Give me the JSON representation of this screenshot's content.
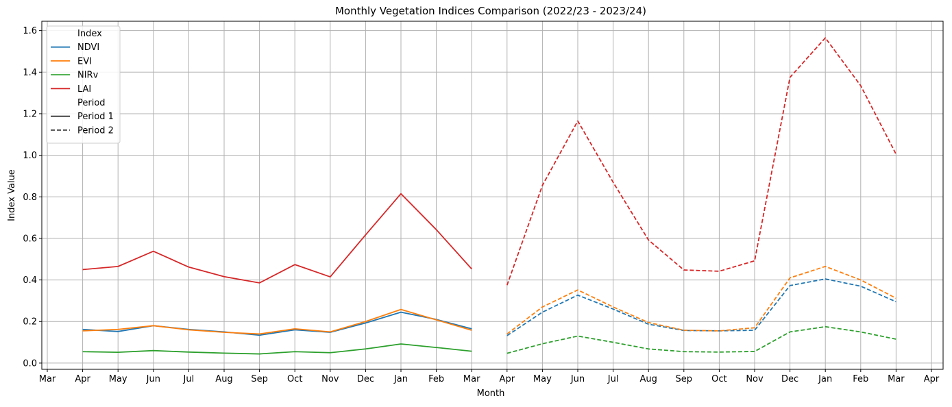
{
  "chart_data": {
    "type": "line",
    "title": "Monthly Vegetation Indices Comparison (2022/23 - 2023/24)",
    "xlabel": "Month",
    "ylabel": "Index Value",
    "ylim": [
      -0.03,
      1.645
    ],
    "yticks": [
      "0.0",
      "0.2",
      "0.4",
      "0.6",
      "0.8",
      "1.0",
      "1.2",
      "1.4",
      "1.6"
    ],
    "x_tick_labels": [
      "Mar",
      "Apr",
      "May",
      "Jun",
      "Jul",
      "Aug",
      "Sep",
      "Oct",
      "Nov",
      "Dec",
      "Jan",
      "Feb",
      "Mar",
      "Apr",
      "May",
      "Jun",
      "Jul",
      "Aug",
      "Sep",
      "Oct",
      "Nov",
      "Dec",
      "Jan",
      "Feb",
      "Mar",
      "Apr"
    ],
    "grid": true,
    "legend": {
      "placement": "top-left",
      "index_title": "Index",
      "period_title": "Period",
      "periods": [
        {
          "name": "Period 1",
          "dash": "solid"
        },
        {
          "name": "Period 2",
          "dash": "dashed"
        }
      ]
    },
    "period1_months": [
      "Apr",
      "May",
      "Jun",
      "Jul",
      "Aug",
      "Sep",
      "Oct",
      "Nov",
      "Dec",
      "Jan",
      "Feb",
      "Mar"
    ],
    "period2_months": [
      "Apr",
      "May",
      "Jun",
      "Jul",
      "Aug",
      "Sep",
      "Oct",
      "Nov",
      "Dec",
      "Jan",
      "Feb",
      "Mar"
    ],
    "series": [
      {
        "name": "NDVI",
        "color": "#1f77b4",
        "period1": [
          0.162,
          0.152,
          0.18,
          0.162,
          0.15,
          0.134,
          0.16,
          0.148,
          0.193,
          0.245,
          0.21,
          0.165
        ],
        "period2": [
          0.132,
          0.245,
          0.327,
          0.26,
          0.187,
          0.157,
          0.155,
          0.158,
          0.373,
          0.405,
          0.37,
          0.295
        ]
      },
      {
        "name": "EVI",
        "color": "#ff7f0e",
        "period1": [
          0.155,
          0.162,
          0.18,
          0.16,
          0.148,
          0.14,
          0.165,
          0.15,
          0.2,
          0.258,
          0.208,
          0.158
        ],
        "period2": [
          0.14,
          0.27,
          0.352,
          0.27,
          0.195,
          0.158,
          0.155,
          0.17,
          0.41,
          0.465,
          0.4,
          0.312
        ]
      },
      {
        "name": "NIRv",
        "color": "#2ca02c",
        "period1": [
          0.055,
          0.052,
          0.06,
          0.053,
          0.048,
          0.044,
          0.055,
          0.05,
          0.068,
          0.092,
          0.075,
          0.057
        ],
        "period2": [
          0.047,
          0.093,
          0.13,
          0.1,
          0.068,
          0.055,
          0.053,
          0.056,
          0.15,
          0.175,
          0.15,
          0.115
        ]
      },
      {
        "name": "LAI",
        "color": "#d62728",
        "period1": [
          0.45,
          0.465,
          0.538,
          0.462,
          0.416,
          0.386,
          0.474,
          0.415,
          0.617,
          0.815,
          0.642,
          0.453
        ],
        "period2": [
          0.375,
          0.855,
          1.165,
          0.87,
          0.592,
          0.448,
          0.442,
          0.492,
          1.375,
          1.565,
          1.335,
          1.005
        ]
      }
    ]
  }
}
